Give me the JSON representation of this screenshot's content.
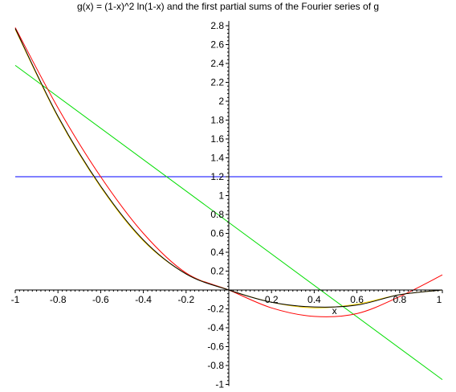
{
  "title": "g(x) = (1-x)^2 ln(1-x) and the first partial sums of the Fourier series of g",
  "chart_data": {
    "type": "line",
    "title": "g(x) = (1-x)^2 ln(1-x) and the first partial sums of the Fourier series of g",
    "xlabel": "x",
    "ylabel": "",
    "xlim": [
      -1,
      1
    ],
    "ylim": [
      -1,
      2.85
    ],
    "grid": false,
    "x_ticks": [
      -1,
      -0.8,
      -0.6,
      -0.4,
      -0.2,
      0.2,
      0.4,
      0.6,
      0.8,
      1
    ],
    "x_tick_labels": [
      "-1",
      "-0.8",
      "-0.6",
      "-0.4",
      "-0.2",
      "0.2",
      "0.4",
      "0.6",
      "0.8",
      "1"
    ],
    "y_ticks": [
      -1,
      -0.8,
      -0.6,
      -0.4,
      -0.2,
      0.2,
      0.4,
      0.6,
      0.8,
      1,
      1.2,
      1.4,
      1.6,
      1.8,
      2,
      2.2,
      2.4,
      2.6,
      2.8
    ],
    "y_tick_labels": [
      "-1",
      "-0.8",
      "-0.6",
      "-0.4",
      "-0.2",
      "0.2",
      "0.4",
      "0.6",
      "0.8",
      "1",
      "1.2",
      "1.4",
      "1.6",
      "1.8",
      "2",
      "2.2",
      "2.4",
      "2.6",
      "2.8"
    ],
    "series": [
      {
        "color": "#0000ff",
        "x": [
          -1,
          1
        ],
        "y": [
          1.2,
          1.2
        ]
      },
      {
        "color": "#00dd00",
        "x": [
          -1,
          1
        ],
        "y": [
          2.38,
          -0.95
        ]
      },
      {
        "color": "#ff0000",
        "x": [
          -1,
          -0.8,
          -0.6,
          -0.4,
          -0.2,
          0,
          0.2,
          0.4,
          0.6,
          0.8,
          1
        ],
        "y": [
          2.78,
          1.93,
          1.2,
          0.6,
          0.18,
          0.0,
          -0.19,
          -0.28,
          -0.25,
          -0.07,
          0.16
        ]
      },
      {
        "color": "#ffd700",
        "x": [
          -1,
          -0.8,
          -0.6,
          -0.4,
          -0.2,
          0,
          0.2,
          0.4,
          0.6,
          0.8,
          1
        ],
        "y": [
          2.76,
          1.83,
          1.09,
          0.52,
          0.17,
          0.0,
          -0.13,
          -0.19,
          -0.15,
          -0.05,
          0.0
        ]
      },
      {
        "color": "#000000",
        "x": [
          -1,
          -0.8,
          -0.6,
          -0.4,
          -0.2,
          0,
          0.2,
          0.4,
          0.6,
          0.8,
          1
        ],
        "y": [
          2.77,
          1.84,
          1.1,
          0.53,
          0.17,
          0.0,
          -0.13,
          -0.18,
          -0.16,
          -0.05,
          0.0
        ]
      }
    ]
  }
}
